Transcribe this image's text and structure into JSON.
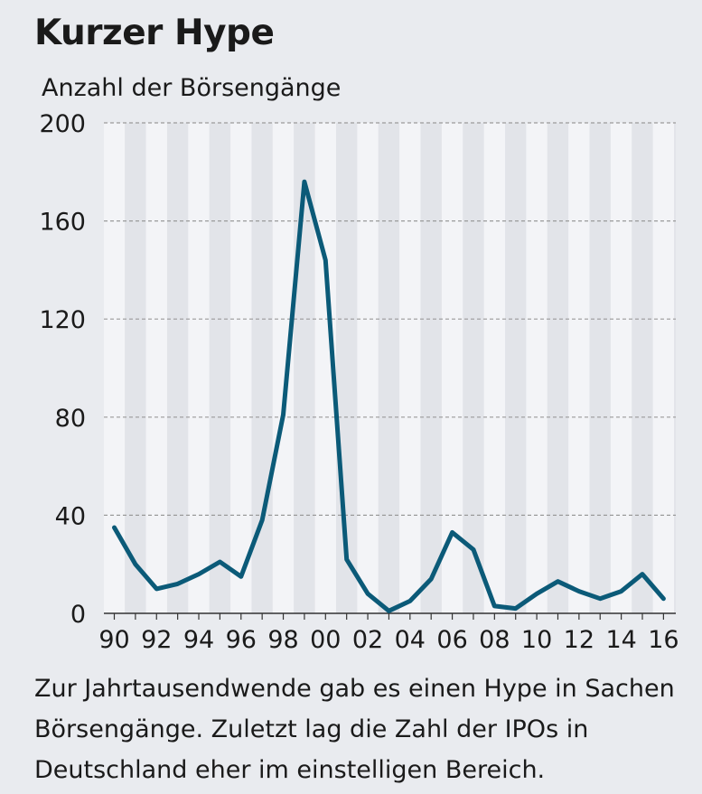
{
  "header": {
    "title": "Kurzer Hype"
  },
  "caption": "Zur Jahrtausendwende gab es einen Hype in Sachen Börsengänge. Zuletzt lag die Zahl der IPOs in Deutschland eher im einstelligen Bereich.",
  "colors": {
    "line": "#0b5a78",
    "background": "#e9ebef",
    "band_light": "#f3f4f7",
    "band_dark": "#e2e4e9",
    "grid": "#9a9a9a"
  },
  "chart_data": {
    "type": "line",
    "title": "Kurzer Hype",
    "ylabel": "Anzahl der Börsengänge",
    "xlabel": "",
    "ylim": [
      0,
      200
    ],
    "yticks": [
      0,
      40,
      80,
      120,
      160,
      200
    ],
    "grid": "horizontal dashed",
    "xtick_labels": [
      "90",
      "92",
      "94",
      "96",
      "98",
      "00",
      "02",
      "04",
      "06",
      "08",
      "10",
      "12",
      "14",
      "16"
    ],
    "xtick_years": [
      1990,
      1992,
      1994,
      1996,
      1998,
      2000,
      2002,
      2004,
      2006,
      2008,
      2010,
      2012,
      2014,
      2016
    ],
    "xlim": [
      1990,
      2017
    ],
    "series": [
      {
        "x": [
          1990,
          1991,
          1992,
          1993,
          1994,
          1995,
          1996,
          1997,
          1998,
          1999,
          2000,
          2001,
          2002,
          2003,
          2004,
          2005,
          2006,
          2007,
          2008,
          2009,
          2010,
          2011,
          2012,
          2013,
          2014,
          2015,
          2016
        ],
        "values": [
          35,
          20,
          10,
          12,
          16,
          21,
          15,
          38,
          81,
          176,
          144,
          22,
          8,
          1,
          5,
          14,
          33,
          26,
          3,
          2,
          8,
          13,
          9,
          6,
          9,
          16,
          6
        ]
      }
    ]
  }
}
